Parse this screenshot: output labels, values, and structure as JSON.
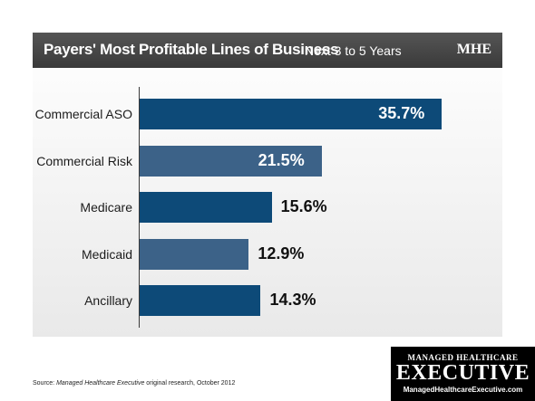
{
  "header": {
    "title": "Payers' Most Profitable Lines of Business",
    "subtitle": "Next 3 to 5 Years",
    "badge": "MHE"
  },
  "chart_data": {
    "type": "bar",
    "orientation": "horizontal",
    "title": "Payers' Most Profitable Lines of Business",
    "subtitle": "Next 3 to 5 Years",
    "categories": [
      "Commercial ASO",
      "Commercial Risk",
      "Medicare",
      "Medicaid",
      "Ancillary"
    ],
    "values": [
      35.7,
      21.5,
      15.6,
      12.9,
      14.3
    ],
    "value_labels": [
      "35.7%",
      "21.5%",
      "15.6%",
      "12.9%",
      "14.3%"
    ],
    "bar_colors": [
      "#0d4a78",
      "#3c6288",
      "#0d4a78",
      "#3c6288",
      "#0d4a78"
    ],
    "xlim": [
      0,
      36
    ],
    "grid": false,
    "legend": false
  },
  "source": {
    "prefix": "Source: ",
    "publication": "Managed Healthcare Executive",
    "rest": " original research, October 2012"
  },
  "brand": {
    "line1": "MANAGED HEALTHCARE",
    "line2": "EXECUTIVE",
    "url": "ManagedHealthcareExecutive.com"
  }
}
